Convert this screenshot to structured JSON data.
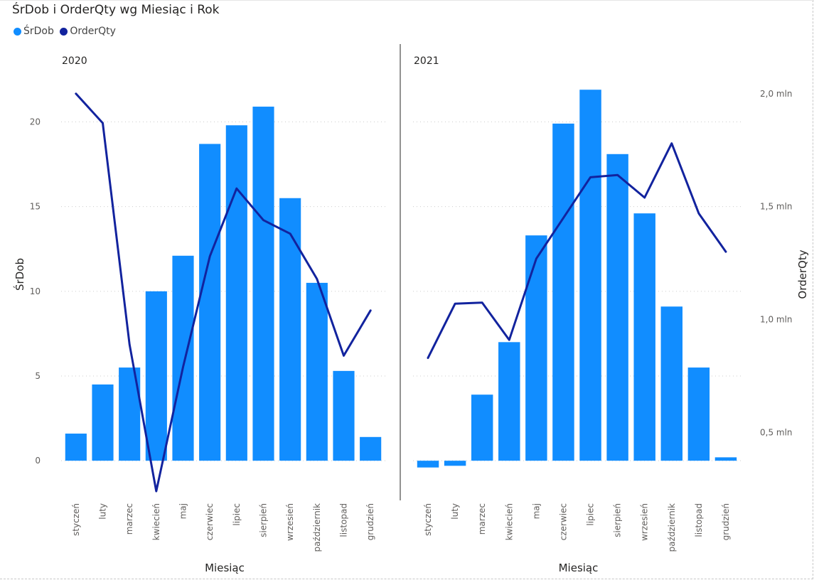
{
  "title": "ŚrDob i OrderQty wg Miesiąc i Rok",
  "colors": {
    "bar": "#118DFF",
    "line": "#12239E",
    "grid": "#cccccc",
    "divider": "#252423"
  },
  "legend": [
    {
      "label": "ŚrDob",
      "color": "#118DFF"
    },
    {
      "label": "OrderQty",
      "color": "#12239E"
    }
  ],
  "chart_data": {
    "type": "bar+line",
    "xlabel": "Miesiąc",
    "ylabel_left": "ŚrDob",
    "ylabel_right": "OrderQty",
    "ylim_left": [
      -1,
      23
    ],
    "yticks_left": [
      0,
      5,
      10,
      15,
      20
    ],
    "ylim_right": [
      0.3,
      2.1
    ],
    "yticks_right": [
      {
        "value": 0.5,
        "label": "0,5 mln"
      },
      {
        "value": 1.0,
        "label": "1,0 mln"
      },
      {
        "value": 1.5,
        "label": "1,5 mln"
      },
      {
        "value": 2.0,
        "label": "2,0 mln"
      }
    ],
    "categories": [
      "styczeń",
      "luty",
      "marzec",
      "kwiecień",
      "maj",
      "czerwiec",
      "lipiec",
      "sierpień",
      "wrzesień",
      "październik",
      "listopad",
      "grudzień"
    ],
    "panels": [
      {
        "year": "2020",
        "bar_values": [
          1.6,
          4.5,
          5.5,
          10.0,
          12.1,
          18.7,
          19.8,
          20.9,
          15.5,
          10.5,
          5.3,
          1.4
        ],
        "line_values": [
          2.0,
          1.87,
          0.89,
          0.24,
          0.79,
          1.28,
          1.58,
          1.44,
          1.38,
          1.18,
          0.84,
          1.04
        ]
      },
      {
        "year": "2021",
        "bar_values": [
          -0.4,
          -0.3,
          3.9,
          7.0,
          13.3,
          19.9,
          21.9,
          18.1,
          14.6,
          9.1,
          5.5,
          0.2
        ],
        "line_values": [
          0.83,
          1.07,
          1.075,
          0.91,
          1.27,
          1.45,
          1.63,
          1.64,
          1.54,
          1.78,
          1.47,
          1.3
        ]
      }
    ]
  }
}
